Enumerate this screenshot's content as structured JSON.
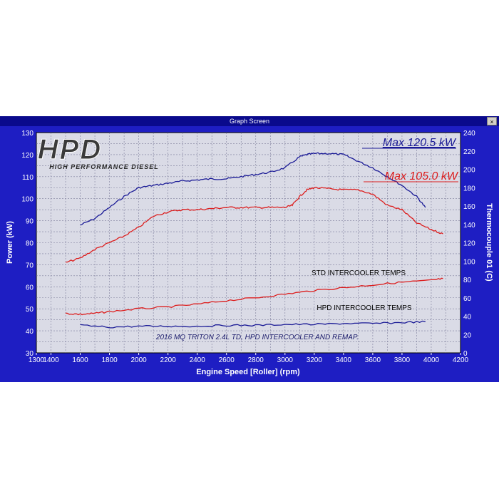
{
  "window": {
    "title": "Graph Screen",
    "close_label": "×"
  },
  "logo": {
    "main_text": "HPD",
    "sub_text": "HIGH PERFORMANCE DIESEL"
  },
  "chart_data": {
    "type": "line",
    "xlabel": "Engine Speed [Roller] (rpm)",
    "ylabel": "Power (kW)",
    "y2label": "Thermocouple 01 (C)",
    "xlim": [
      1300,
      4200
    ],
    "ylim": [
      30,
      130
    ],
    "y2lim": [
      0,
      240
    ],
    "xticks": [
      1300,
      1400,
      1600,
      1800,
      2000,
      2200,
      2400,
      2600,
      2800,
      3000,
      3200,
      3400,
      3600,
      3800,
      4000,
      4200
    ],
    "yticks": [
      30,
      40,
      50,
      60,
      70,
      80,
      90,
      100,
      110,
      120,
      130
    ],
    "y2ticks": [
      0,
      20,
      40,
      60,
      80,
      100,
      120,
      140,
      160,
      180,
      200,
      220,
      240
    ],
    "grid": true,
    "annotations": {
      "max_blue": "Max 120.5 kW",
      "max_red": "Max 105.0 kW",
      "std_label": "STD INTERCOOLER TEMPS",
      "hpd_label": "HPD INTERCOOLER TEMPS",
      "caption": "2016 MQ TRITON 2.4L TD, HPD INTERCOOLER AND REMAP."
    },
    "colors": {
      "blue": "#1a1a96",
      "red": "#dc1e1e",
      "background": "#dadbe6",
      "frame": "#1e1ec3",
      "grid": "#7c7c9a"
    },
    "series": [
      {
        "color": "blue",
        "axis": "left",
        "x": [
          1600,
          1700,
          1800,
          1900,
          2000,
          2100,
          2200,
          2300,
          2400,
          2500,
          2600,
          2700,
          2800,
          2900,
          3000,
          3100,
          3150,
          3200,
          3300,
          3400,
          3500,
          3600,
          3700,
          3800,
          3900,
          3960
        ],
        "y": [
          88,
          91,
          96,
          101,
          105,
          106,
          107,
          108,
          108.5,
          109,
          109,
          110,
          111,
          112,
          114,
          119,
          120,
          120.5,
          120.5,
          120,
          117,
          114,
          110,
          106,
          101,
          96
        ]
      },
      {
        "color": "red",
        "axis": "left",
        "x": [
          1500,
          1600,
          1700,
          1800,
          1900,
          2000,
          2100,
          2200,
          2300,
          2400,
          2500,
          2600,
          2700,
          2800,
          2900,
          3000,
          3050,
          3100,
          3150,
          3200,
          3300,
          3400,
          3500,
          3600,
          3700,
          3800,
          3900,
          4000,
          4080
        ],
        "y": [
          71,
          73,
          77,
          80,
          83,
          87,
          92,
          94,
          95,
          95,
          95.5,
          96,
          96,
          96,
          96,
          96,
          97,
          101,
          104,
          105,
          104.5,
          104,
          104,
          102,
          97,
          95,
          89,
          86,
          84
        ]
      },
      {
        "color": "red",
        "axis": "right",
        "x": [
          1500,
          1600,
          1700,
          1800,
          2000,
          2200,
          2400,
          2600,
          2800,
          3000,
          3200,
          3400,
          3600,
          3800,
          4000,
          4080
        ],
        "y": [
          43,
          42,
          43,
          45,
          48,
          50,
          53,
          57,
          60,
          64,
          68,
          71,
          74,
          77,
          79,
          81
        ]
      },
      {
        "color": "blue",
        "axis": "right",
        "x": [
          1600,
          1800,
          2000,
          2200,
          2400,
          2600,
          2800,
          3000,
          3200,
          3400,
          3600,
          3800,
          3960
        ],
        "y": [
          30,
          28,
          29,
          29,
          29,
          30,
          30,
          31,
          31,
          32,
          32,
          33,
          34
        ]
      }
    ]
  }
}
